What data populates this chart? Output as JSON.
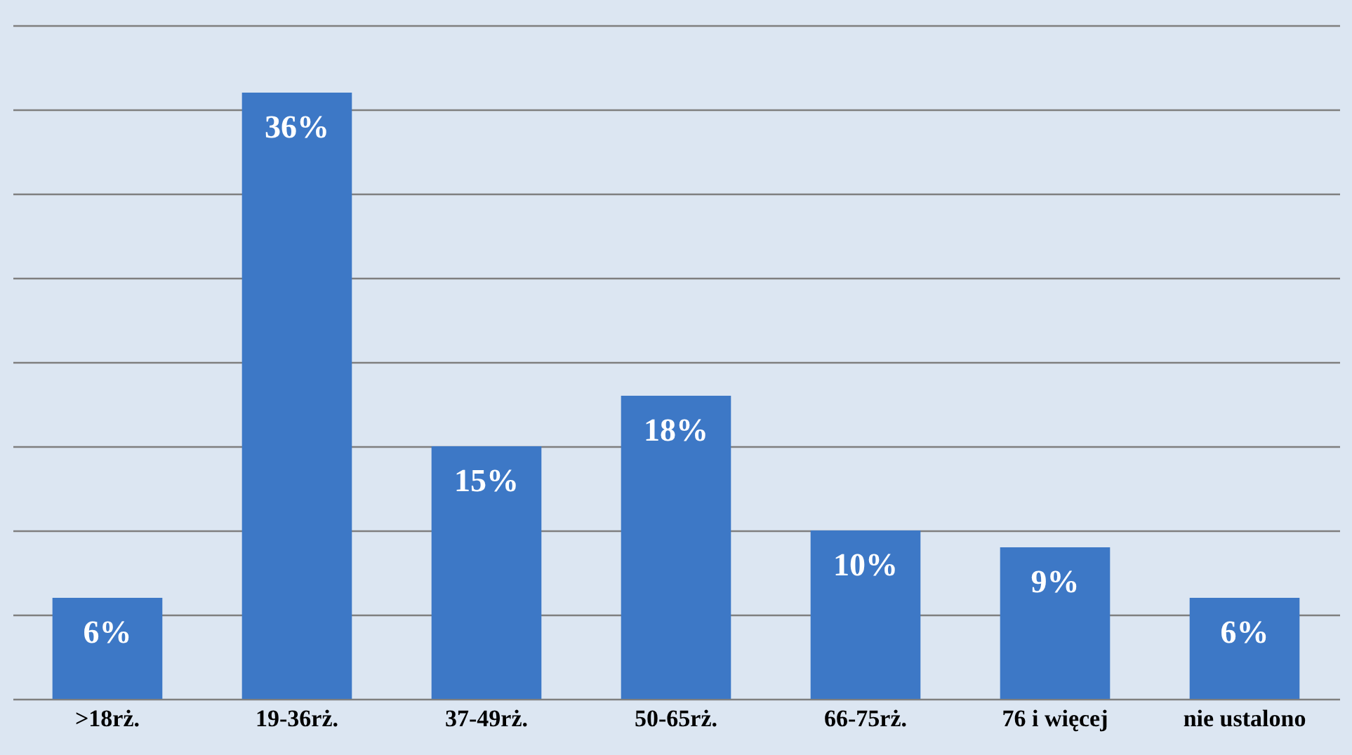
{
  "chart_data": {
    "type": "bar",
    "categories": [
      ">18rż.",
      "19-36rż.",
      "37-49rż.",
      "50-65rż.",
      "66-75rż.",
      "76 i więcej",
      "nie ustalono"
    ],
    "values": [
      6,
      36,
      15,
      18,
      10,
      9,
      6
    ],
    "value_labels": [
      "6%",
      "36%",
      "15%",
      "18%",
      "10%",
      "9%",
      "6%"
    ],
    "color": "#3d78c6",
    "ylim": [
      0,
      40
    ],
    "yticks": [
      {
        "value": 0,
        "label": null
      },
      {
        "value": 5,
        "label": null
      },
      {
        "value": 10,
        "label": null
      },
      {
        "value": 15,
        "label": null
      },
      {
        "value": 20,
        "label": null
      },
      {
        "value": 25,
        "label": null
      },
      {
        "value": 30,
        "label": null
      },
      {
        "value": 35,
        "label": null
      },
      {
        "value": 40,
        "label": null
      }
    ],
    "grid": "y",
    "tick_labels": "x"
  }
}
